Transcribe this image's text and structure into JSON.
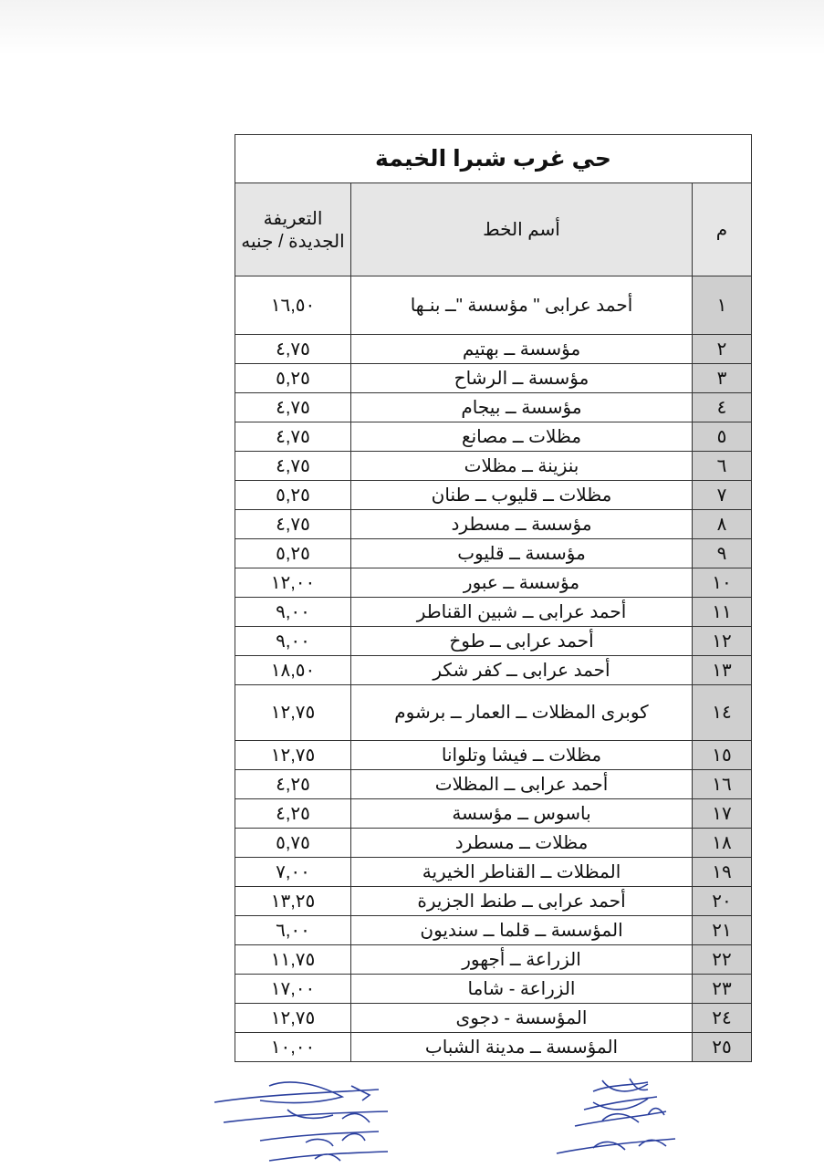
{
  "document": {
    "title": "حي غرب شبرا الخيمة",
    "columns": {
      "number": "م",
      "line_name": "أسم الخط",
      "fare": "التعريفة الجديدة / جنيه"
    },
    "rows": [
      {
        "no": "١",
        "name": "أحمد عرابى \" مؤسسة \"ــ بنـها",
        "fare": "١٦,٥٠"
      },
      {
        "no": "٢",
        "name": "مؤسسة ــ بهتيم",
        "fare": "٤,٧٥"
      },
      {
        "no": "٣",
        "name": "مؤسسة ــ الرشاح",
        "fare": "٥,٢٥"
      },
      {
        "no": "٤",
        "name": "مؤسسة ــ بيجام",
        "fare": "٤,٧٥"
      },
      {
        "no": "٥",
        "name": "مظلات ــ مصانع",
        "fare": "٤,٧٥"
      },
      {
        "no": "٦",
        "name": "بنزينة ــ مظلات",
        "fare": "٤,٧٥"
      },
      {
        "no": "٧",
        "name": "مظلات ــ قليوب ــ طنان",
        "fare": "٥,٢٥"
      },
      {
        "no": "٨",
        "name": "مؤسسة ــ مسطرد",
        "fare": "٤,٧٥"
      },
      {
        "no": "٩",
        "name": "مؤسسة ــ قليوب",
        "fare": "٥,٢٥"
      },
      {
        "no": "١٠",
        "name": "مؤسسة ــ عبور",
        "fare": "١٢,٠٠"
      },
      {
        "no": "١١",
        "name": "أحمد عرابى ــ شبين القناطر",
        "fare": "٩,٠٠"
      },
      {
        "no": "١٢",
        "name": "أحمد عرابى ــ طوخ",
        "fare": "٩,٠٠"
      },
      {
        "no": "١٣",
        "name": "أحمد عرابى ــ كفر شكر",
        "fare": "١٨,٥٠"
      },
      {
        "no": "١٤",
        "name": "كوبرى المظلات ــ العمار ــ برشوم",
        "fare": "١٢,٧٥"
      },
      {
        "no": "١٥",
        "name": "مظلات ــ فيشا وتلوانا",
        "fare": "١٢,٧٥"
      },
      {
        "no": "١٦",
        "name": "أحمد عرابى ــ المظلات",
        "fare": "٤,٢٥"
      },
      {
        "no": "١٧",
        "name": "باسوس ــ مؤسسة",
        "fare": "٤,٢٥"
      },
      {
        "no": "١٨",
        "name": "مظلات ــ مسطرد",
        "fare": "٥,٧٥"
      },
      {
        "no": "١٩",
        "name": "المظلات ــ القناطر الخيرية",
        "fare": "٧,٠٠"
      },
      {
        "no": "٢٠",
        "name": "أحمد عرابى ــ طنط الجزيرة",
        "fare": "١٣,٢٥"
      },
      {
        "no": "٢١",
        "name": "المؤسسة ــ قلما ــ سنديون",
        "fare": "٦,٠٠"
      },
      {
        "no": "٢٢",
        "name": "الزراعة ــ أجهور",
        "fare": "١١,٧٥"
      },
      {
        "no": "٢٣",
        "name": "الزراعة - شاما",
        "fare": "١٧,٠٠"
      },
      {
        "no": "٢٤",
        "name": "المؤسسة - دجوى",
        "fare": "١٢,٧٥"
      },
      {
        "no": "٢٥",
        "name": "المؤسسة ــ مدينة الشباب",
        "fare": "١٠,٠٠"
      }
    ]
  },
  "colors": {
    "number_column": "#cfcfcf",
    "header": "#e6e6e6",
    "signature_ink": "#2a3f9e"
  }
}
